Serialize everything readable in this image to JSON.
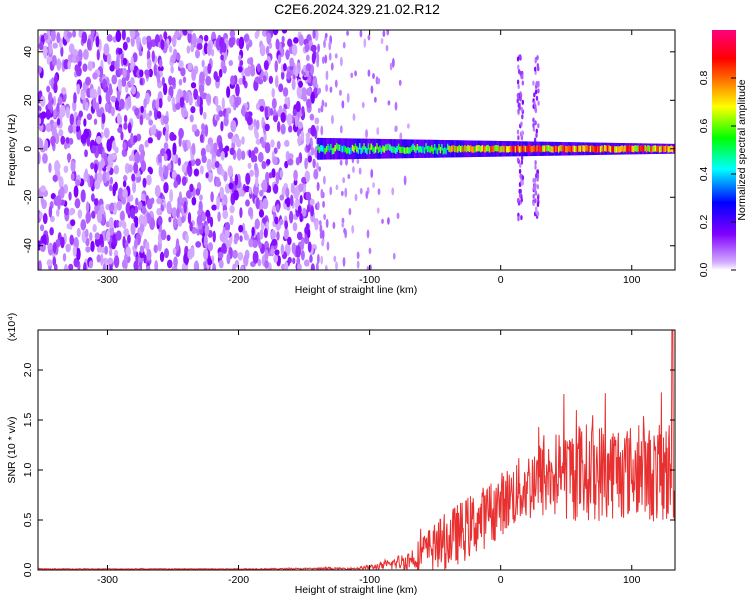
{
  "title": "C2E6.2024.329.21.02.R12",
  "chart_data": [
    {
      "type": "heatmap",
      "xlabel": "Height of straight line (km)",
      "ylabel": "Frequency (Hz)",
      "xlim": [
        -353,
        133
      ],
      "ylim": [
        -50,
        49
      ],
      "xticks": [
        -300,
        -200,
        -100,
        0,
        100
      ],
      "yticks": [
        -40,
        -20,
        0,
        20,
        40
      ],
      "colorbar": {
        "label": "Normalized spectral amplitude",
        "range": [
          0,
          1
        ],
        "ticks": [
          "0.0",
          "0.2",
          "0.4",
          "0.6",
          "0.8"
        ],
        "tick_values": [
          0.0,
          0.2,
          0.4,
          0.6,
          0.8
        ],
        "colormap": [
          "#ffffff",
          "#8000ff",
          "#0000ff",
          "#00ffff",
          "#00ff00",
          "#ffff00",
          "#ff8000",
          "#ff0000",
          "#ff0080"
        ]
      },
      "features": {
        "noise_region_x": [
          -353,
          -140
        ],
        "transition_x": [
          -140,
          -100
        ],
        "signal_line_freq_hz": 0,
        "signal_start_x": -140,
        "vertical_streaks_x": [
          15,
          27
        ]
      }
    },
    {
      "type": "line",
      "xlabel": "Height of straight line (km)",
      "ylabel": "SNR (10 * v/v)",
      "y_multiplier": "(x10⁴)",
      "xlim": [
        -353,
        133
      ],
      "ylim": [
        0,
        2.4
      ],
      "xticks": [
        -300,
        -200,
        -100,
        0,
        100
      ],
      "yticks": [
        "0.0",
        "0.5",
        "1.0",
        "1.5",
        "2.0"
      ],
      "ytick_values": [
        0,
        0.5,
        1.0,
        1.5,
        2.0
      ],
      "color": "#e83030",
      "envelope": {
        "x": [
          -353,
          -200,
          -110,
          -90,
          -70,
          -55,
          -40,
          -25,
          -10,
          0,
          15,
          30,
          45,
          60,
          75,
          90,
          105,
          120,
          133
        ],
        "mean": [
          0.01,
          0.01,
          0.015,
          0.04,
          0.1,
          0.2,
          0.3,
          0.42,
          0.55,
          0.66,
          0.8,
          0.9,
          0.95,
          0.98,
          0.98,
          1.0,
          0.98,
          0.95,
          1.0
        ],
        "spread": [
          0.004,
          0.004,
          0.01,
          0.04,
          0.1,
          0.22,
          0.3,
          0.32,
          0.32,
          0.32,
          0.34,
          0.4,
          0.46,
          0.5,
          0.5,
          0.5,
          0.45,
          0.5,
          0.55
        ]
      },
      "peak": {
        "x": 131,
        "y": 2.4
      }
    }
  ]
}
